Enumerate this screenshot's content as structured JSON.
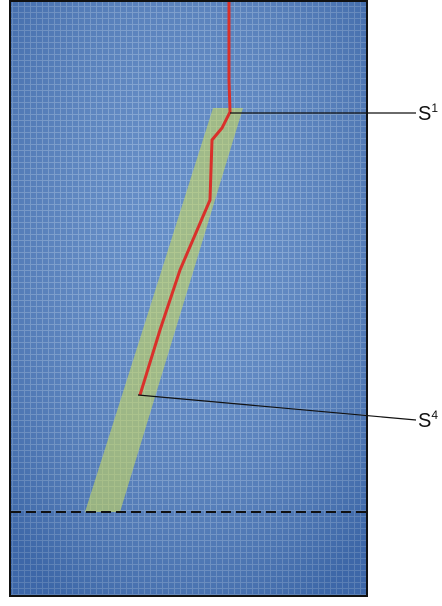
{
  "labels": [
    {
      "text": "S",
      "sup": "1"
    },
    {
      "text": "S",
      "sup": "4"
    }
  ]
}
